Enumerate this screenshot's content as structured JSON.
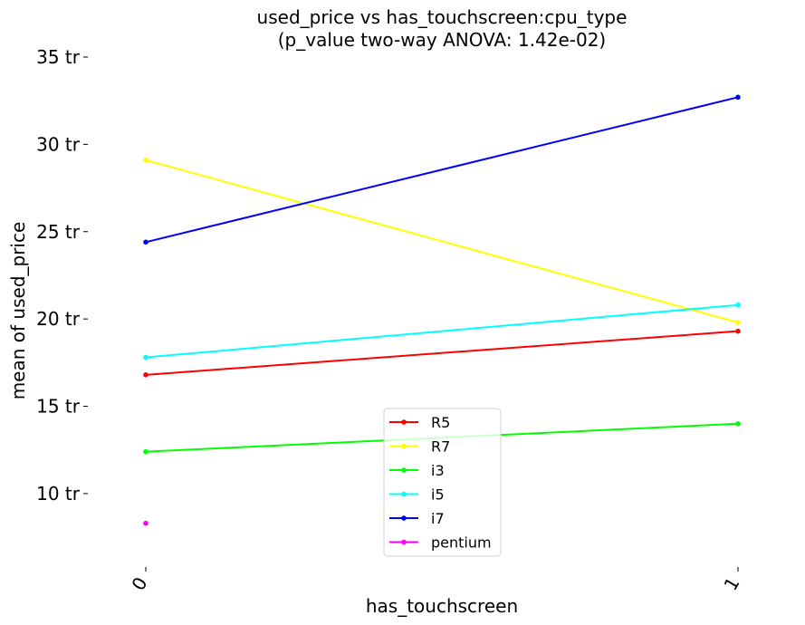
{
  "chart_data": {
    "type": "line",
    "title": "used_price vs has_touchscreen:cpu_type",
    "subtitle": "(p_value two-way ANOVA: 1.42e-02)",
    "xlabel": "has_touchscreen",
    "ylabel": "mean of used_price",
    "x": [
      0,
      1
    ],
    "x_tick_labels": [
      "0",
      "1"
    ],
    "y_ticks": [
      10,
      15,
      20,
      25,
      30,
      35
    ],
    "y_tick_labels": [
      "10 tr",
      "15 tr",
      "20 tr",
      "25 tr",
      "30 tr",
      "35 tr"
    ],
    "ylim": [
      6.0,
      35.0
    ],
    "grid": false,
    "legend_position": "lower-center",
    "series": [
      {
        "name": "R5",
        "color": "#ff0000",
        "values": [
          16.8,
          19.3
        ]
      },
      {
        "name": "R7",
        "color": "#ffff00",
        "values": [
          29.1,
          19.8
        ]
      },
      {
        "name": "i3",
        "color": "#00ff00",
        "values": [
          12.4,
          14.0
        ]
      },
      {
        "name": "i5",
        "color": "#00ffff",
        "values": [
          17.8,
          20.8
        ]
      },
      {
        "name": "i7",
        "color": "#0000ff",
        "values": [
          24.4,
          32.7
        ]
      },
      {
        "name": "pentium",
        "color": "#ff00ff",
        "values": [
          8.3,
          null
        ]
      }
    ]
  }
}
